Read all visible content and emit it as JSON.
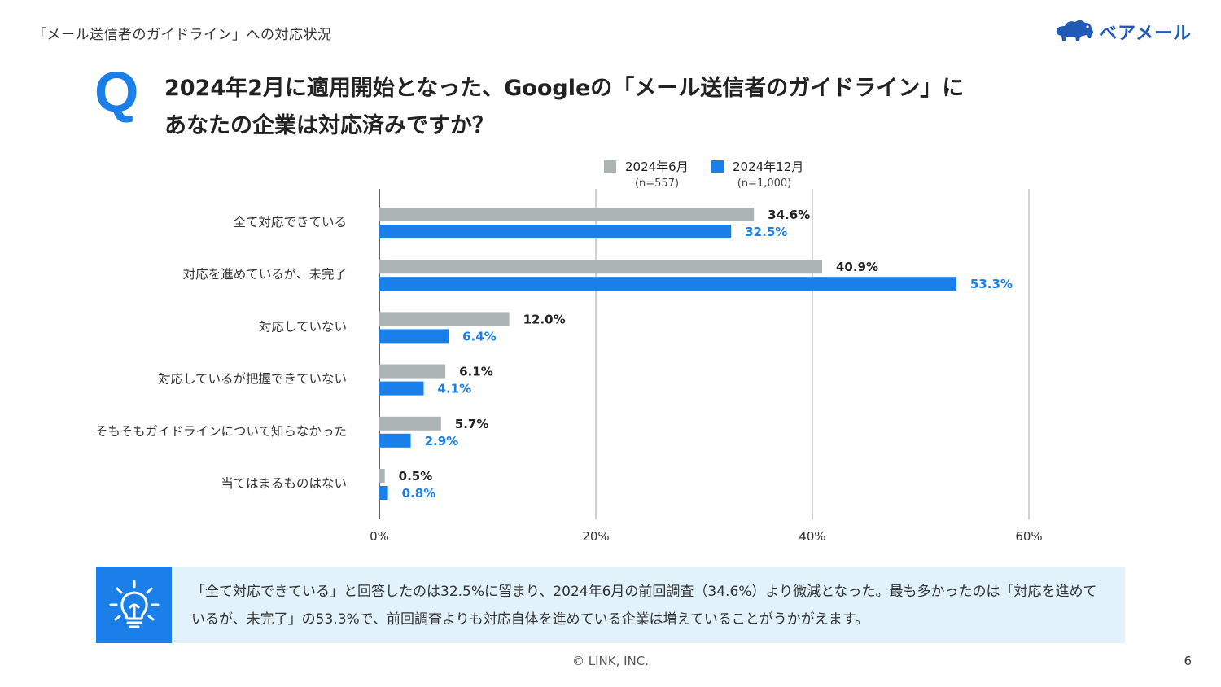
{
  "header": {
    "title": "「メール送信者のガイドライン」への対応状況"
  },
  "logo": {
    "text": "ベアメール",
    "icon": "bear-cloud-icon",
    "color": "#1f5bb5"
  },
  "question": {
    "mark": "Q",
    "line1": "2024年2月に適用開始となった、Googleの「メール送信者のガイドライン」に",
    "line2": "あなたの企業は対応済みですか？"
  },
  "chart_data": {
    "type": "bar",
    "orientation": "horizontal",
    "categories": [
      "全て対応できている",
      "対応を進めているが、未完了",
      "対応していない",
      "対応しているが把握できていない",
      "そもそもガイドラインについて知らなかった",
      "当てはまるものはない"
    ],
    "series": [
      {
        "name": "2024年6月",
        "sub": "(n=557)",
        "color": "#abb4b2",
        "label_color": "#222222",
        "values": [
          34.6,
          40.9,
          12.0,
          6.1,
          5.7,
          0.5
        ],
        "labels": [
          "34.6%",
          "40.9%",
          "12.0%",
          "6.1%",
          "5.7%",
          "0.5%"
        ]
      },
      {
        "name": "2024年12月",
        "sub": "(n=1,000)",
        "color": "#1a7fe8",
        "label_color": "#1a7fe8",
        "values": [
          32.5,
          53.3,
          6.4,
          4.1,
          2.9,
          0.8
        ],
        "labels": [
          "32.5%",
          "53.3%",
          "6.4%",
          "4.1%",
          "2.9%",
          "0.8%"
        ]
      }
    ],
    "xlim": [
      0,
      60
    ],
    "x_ticks": [
      0,
      20,
      40,
      60
    ],
    "x_tick_labels": [
      "0%",
      "20%",
      "40%",
      "60%"
    ],
    "grid": true,
    "legend_position": "top"
  },
  "insight": {
    "icon": "lightbulb-icon",
    "text": "「全て対応できている」と回答したのは32.5%に留まり、2024年6月の前回調査（34.6%）より微減となった。最も多かったのは「対応を進めているが、未完了」の53.3%で、前回調査よりも対応自体を進めている企業は増えていることがうかがえます。"
  },
  "footer": {
    "copyright": "© LINK, INC.",
    "page": "6"
  }
}
